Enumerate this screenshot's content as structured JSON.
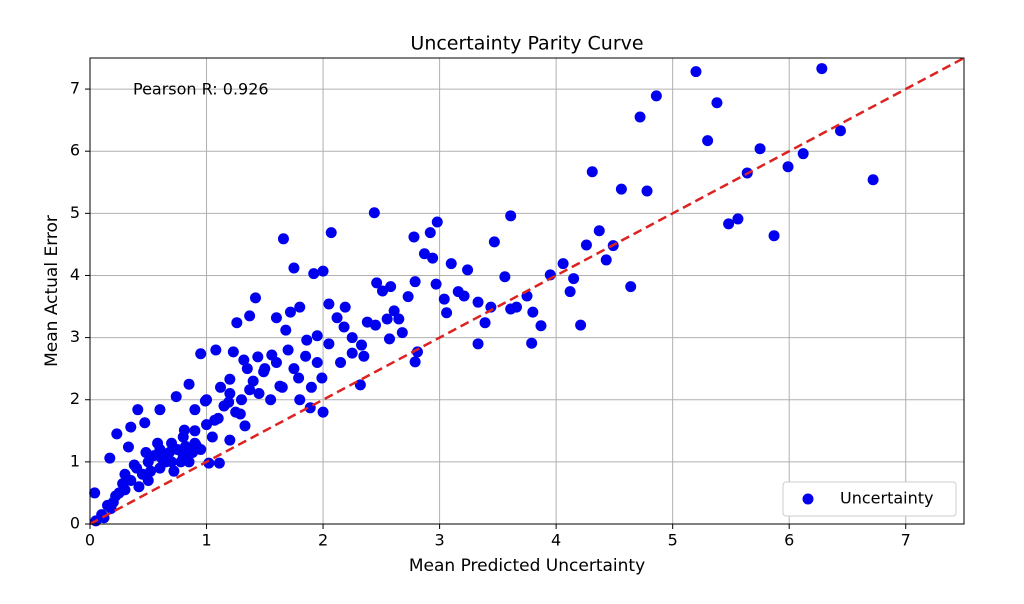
{
  "chart_data": {
    "type": "scatter",
    "title": "Uncertainty Parity Curve",
    "x_label": "Mean Predicted Uncertainty",
    "y_label": "Mean Actual Error",
    "annotation": "Pearson R: 0.926",
    "xlim": [
      0,
      7.5
    ],
    "ylim": [
      0,
      7.5
    ],
    "xticks": [
      0,
      1,
      2,
      3,
      4,
      5,
      6,
      7
    ],
    "yticks": [
      0,
      1,
      2,
      3,
      4,
      5,
      6,
      7
    ],
    "grid": true,
    "legend": "lower right",
    "reference_line": {
      "x": [
        0,
        7.5
      ],
      "y": [
        0,
        7.5
      ],
      "color": "#dd2222",
      "style": "dashed"
    },
    "series": [
      {
        "name": "Uncertainty",
        "color": "#0000ee",
        "x": [
          6.28,
          5.2,
          4.86,
          4.72,
          5.38,
          5.3,
          5.75,
          6.44,
          6.12,
          5.99,
          5.64,
          6.72,
          4.31,
          4.56,
          4.78,
          5.56,
          5.48,
          5.87,
          4.37,
          4.49,
          4.26,
          4.43,
          4.64,
          4.21,
          4.06,
          3.95,
          4.15,
          4.12,
          3.8,
          3.87,
          3.79,
          3.75,
          3.66,
          3.61,
          3.56,
          3.61,
          3.47,
          3.44,
          3.33,
          3.39,
          3.33,
          3.24,
          3.1,
          2.98,
          2.92,
          2.78,
          2.87,
          2.94,
          2.44,
          2.07,
          1.66,
          1.75,
          2.0,
          1.92,
          3.04,
          3.16,
          3.21,
          3.06,
          2.97,
          2.73,
          2.79,
          2.58,
          2.51,
          2.46,
          2.61,
          2.68,
          2.57,
          2.81,
          2.79,
          2.38,
          2.33,
          2.32,
          2.25,
          2.18,
          2.12,
          2.19,
          2.05,
          1.95,
          1.86,
          1.99,
          2.0,
          1.89,
          1.79,
          1.68,
          1.72,
          1.8,
          1.6,
          1.42,
          1.37,
          1.26,
          1.23,
          1.32,
          1.44,
          1.56,
          1.49,
          1.63,
          1.37,
          1.2,
          1.08,
          0.95,
          1.29,
          1.19,
          0.99,
          1.07,
          1.2,
          1.33,
          0.9,
          0.85,
          0.74,
          0.81,
          0.6,
          0.47,
          0.41,
          0.35,
          0.23,
          0.33,
          0.17,
          0.04,
          1.11,
          1.02,
          0.91,
          0.1,
          0.15,
          0.2,
          0.25,
          0.3,
          0.3,
          0.35,
          0.4,
          0.45,
          0.5,
          0.5,
          0.55,
          0.6,
          0.6,
          0.65,
          0.7,
          0.7,
          0.75,
          0.8,
          0.8,
          0.85,
          0.9,
          0.9,
          0.95,
          1.0,
          1.05,
          1.1,
          0.05,
          0.12,
          0.18,
          0.22,
          0.28,
          0.38,
          0.42,
          0.48,
          0.52,
          0.58,
          0.62,
          0.68,
          0.72,
          0.78,
          0.82,
          0.88,
          1.15,
          1.2,
          1.3,
          1.4,
          1.5,
          1.6,
          1.7,
          1.35,
          1.45,
          1.55,
          1.65,
          1.75,
          1.85,
          1.95,
          2.05,
          2.15,
          2.25,
          2.35,
          2.45,
          2.55,
          2.65,
          1.9,
          1.8,
          1.25,
          1.12,
          1.0
        ],
        "values": [
          7.33,
          7.28,
          6.89,
          6.55,
          6.78,
          6.17,
          6.04,
          6.33,
          5.96,
          5.75,
          5.65,
          5.54,
          5.67,
          5.39,
          5.36,
          4.91,
          4.83,
          4.64,
          4.72,
          4.48,
          4.49,
          4.25,
          3.82,
          3.2,
          4.19,
          4.01,
          3.95,
          3.74,
          3.41,
          3.19,
          2.91,
          3.67,
          3.49,
          3.46,
          3.98,
          4.96,
          4.54,
          3.49,
          3.57,
          3.24,
          2.9,
          4.09,
          4.19,
          4.86,
          4.69,
          4.62,
          4.35,
          4.28,
          5.01,
          4.69,
          4.59,
          4.12,
          4.07,
          4.03,
          3.62,
          3.74,
          3.67,
          3.4,
          3.86,
          3.66,
          3.9,
          3.82,
          3.75,
          3.88,
          3.43,
          3.08,
          2.98,
          2.77,
          2.61,
          3.25,
          2.88,
          2.24,
          2.75,
          3.17,
          3.32,
          3.49,
          3.54,
          3.03,
          2.96,
          2.35,
          1.8,
          1.87,
          2.35,
          3.12,
          3.41,
          3.49,
          3.32,
          3.64,
          3.35,
          3.24,
          2.77,
          2.64,
          2.69,
          2.72,
          2.45,
          2.22,
          2.16,
          2.33,
          2.8,
          2.74,
          1.77,
          1.96,
          1.98,
          1.67,
          1.35,
          1.58,
          1.84,
          2.25,
          2.05,
          1.51,
          1.84,
          1.63,
          1.84,
          1.56,
          1.45,
          1.24,
          1.06,
          0.5,
          0.98,
          0.98,
          1.27,
          0.15,
          0.3,
          0.35,
          0.5,
          0.55,
          0.8,
          0.7,
          0.9,
          0.8,
          1.0,
          0.7,
          1.1,
          0.9,
          1.2,
          1.0,
          1.3,
          1.0,
          1.2,
          1.4,
          1.1,
          1.0,
          1.3,
          1.5,
          1.2,
          1.6,
          1.4,
          1.7,
          0.05,
          0.1,
          0.25,
          0.45,
          0.65,
          0.95,
          0.6,
          1.15,
          0.85,
          1.3,
          1.05,
          1.15,
          0.85,
          1.0,
          1.25,
          1.15,
          1.9,
          2.1,
          2.0,
          2.3,
          2.5,
          2.6,
          2.8,
          2.5,
          2.1,
          2.0,
          2.2,
          2.5,
          2.7,
          2.6,
          2.9,
          2.6,
          3.0,
          2.7,
          3.2,
          3.3,
          3.3,
          2.2,
          2.0,
          1.8,
          2.2,
          2.0
        ]
      }
    ]
  }
}
